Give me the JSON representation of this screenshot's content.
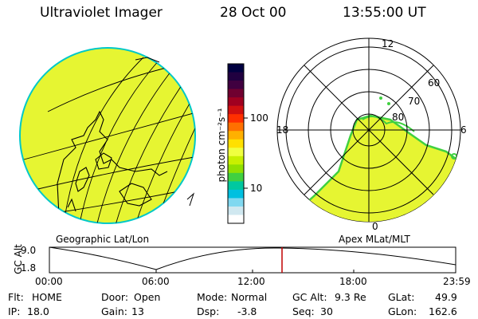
{
  "header": {
    "instrument": "Ultraviolet Imager",
    "date": "28 Oct 00",
    "time": "13:55:00 UT"
  },
  "colorbar": {
    "unit_label": "photon cm⁻²s⁻¹",
    "ticks": [
      "100",
      "10"
    ],
    "colors": [
      "#000040",
      "#200040",
      "#400040",
      "#700030",
      "#a00020",
      "#d01010",
      "#ff3000",
      "#ff7000",
      "#ffb000",
      "#ffe000",
      "#f0ff40",
      "#c8f000",
      "#90e000",
      "#40d040",
      "#00c8a0",
      "#00c0e0",
      "#80d8f0",
      "#d0e8f0",
      "#ffffff"
    ]
  },
  "left_map": {
    "caption": "Geographic Lat/Lon",
    "fill_color": "#e6f532",
    "rim_color": "#00c8c8"
  },
  "polar_map": {
    "caption": "Apex MLat/MLT",
    "mlt_labels": {
      "top": "12",
      "left": "18",
      "right": "6",
      "bottom": "0"
    },
    "lat_labels": [
      "60",
      "70",
      "80"
    ],
    "fill_color": "#e6f532"
  },
  "timeline": {
    "ylabel": "GC Alt",
    "y_top": "9.0",
    "y_bottom": "1.8",
    "x_ticks": [
      "00:00",
      "06:00",
      "12:00",
      "18:00",
      "23:59"
    ],
    "marker_time": "13:55",
    "marker_color": "#c00000"
  },
  "status": {
    "filter_label": "Flt:",
    "filter_value": "HOME",
    "ip_label": "IP:",
    "ip_value": "18.0",
    "door_label": "Door:",
    "door_value": "Open",
    "gain_label": "Gain:",
    "gain_value": "13",
    "mode_label": "Mode:",
    "mode_value": "Normal",
    "dsp_label": "Dsp:",
    "dsp_value": "-3.8",
    "gcalt_label": "GC Alt:",
    "gcalt_value": "9.3 Re",
    "seq_label": "Seq:",
    "seq_value": "30",
    "glat_label": "GLat:",
    "glat_value": "49.9",
    "glon_label": "GLon:",
    "glon_value": "162.6"
  }
}
